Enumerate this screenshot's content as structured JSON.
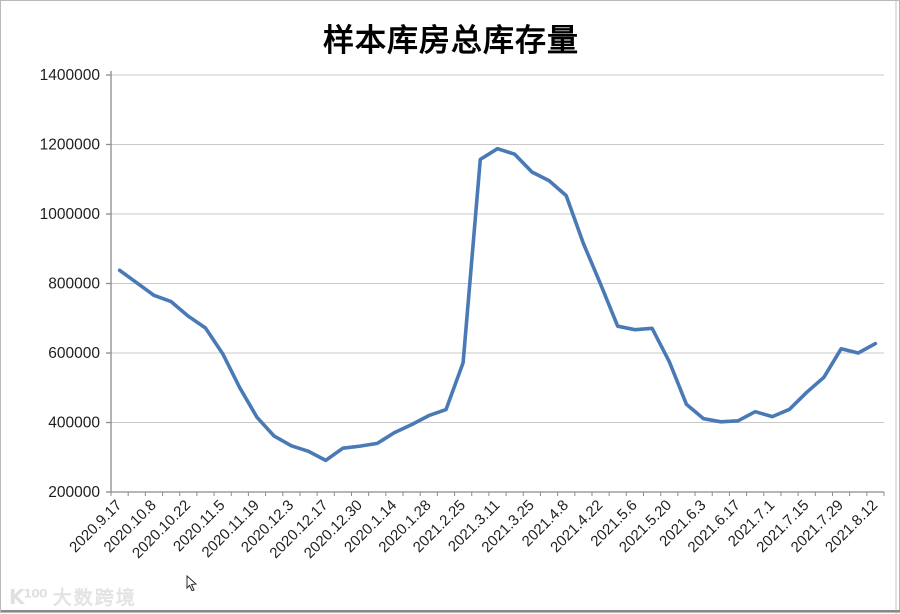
{
  "title": "样本库房总库存量",
  "watermark": {
    "logo": "K¹⁰⁰",
    "text": "大数跨境"
  },
  "colors": {
    "line": "#4a7ab5",
    "gridline": "#c9c9c9",
    "axis": "#8c8c8c",
    "tick": "#8c8c8c",
    "label_text": "#1f1f1f",
    "watermark": "#e2e2e2"
  },
  "chart_data": {
    "type": "line",
    "title": "样本库房总库存量",
    "xlabel": "",
    "ylabel": "",
    "grid": true,
    "legend": false,
    "ylim": [
      200000,
      1400000
    ],
    "y_ticks": [
      200000,
      400000,
      600000,
      800000,
      1000000,
      1200000,
      1400000
    ],
    "x_labels_shown": [
      "2020.9.17",
      "2020.10.8",
      "2020.10.22",
      "2020.11.5",
      "2020.11.19",
      "2020.12.3",
      "2020.12.17",
      "2020.12.30",
      "2020.1.14",
      "2020.1.28",
      "2021.2.25",
      "2021.3.11",
      "2021.3.25",
      "2021.4.8",
      "2021.4.22",
      "2021.5.6",
      "2021.5.20",
      "2021.6.3",
      "2021.6.17",
      "2021.7.1",
      "2021.7.15",
      "2021.7.29",
      "2021.8.12"
    ],
    "label_interval": 2,
    "categories": [
      "2020.9.17",
      "",
      "2020.10.8",
      "",
      "2020.10.22",
      "",
      "2020.11.5",
      "",
      "2020.11.19",
      "",
      "2020.12.3",
      "",
      "2020.12.17",
      "",
      "2020.12.30",
      "",
      "2020.1.14",
      "",
      "2020.1.28",
      "",
      "2021.2.25",
      "",
      "2021.3.11",
      "",
      "2021.3.25",
      "",
      "2021.4.8",
      "",
      "2021.4.22",
      "",
      "2021.5.6",
      "",
      "2021.5.20",
      "",
      "2021.6.3",
      "",
      "2021.6.17",
      "",
      "2021.7.1",
      "",
      "2021.7.15",
      "",
      "2021.7.29",
      "",
      "2021.8.12"
    ],
    "values": [
      838000,
      802000,
      766000,
      748000,
      706000,
      672000,
      598000,
      500000,
      415000,
      361000,
      333000,
      317000,
      291000,
      326000,
      332000,
      340000,
      371000,
      394000,
      420000,
      437000,
      572000,
      1157000,
      1188000,
      1172000,
      1121000,
      1096000,
      1053000,
      915000,
      798000,
      677000,
      667000,
      671000,
      575000,
      452000,
      411000,
      402000,
      405000,
      431000,
      417000,
      438000,
      487000,
      530000,
      612000,
      600000,
      627000
    ]
  }
}
